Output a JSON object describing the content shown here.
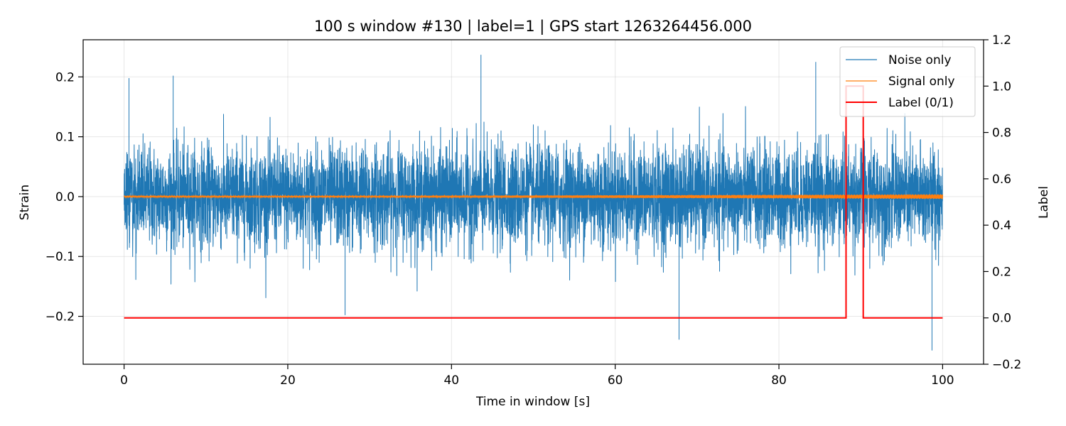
{
  "chart_data": {
    "type": "line",
    "title": "100 s window #130 | label=1 | GPS start 1263264456.000",
    "xlabel": "Time in window [s]",
    "ylabel": "Strain",
    "y2label": "Label",
    "xlim": [
      -5,
      105
    ],
    "ylim": [
      -0.28,
      0.262
    ],
    "y2lim": [
      -0.2,
      1.2
    ],
    "x_ticks": [
      0,
      20,
      40,
      60,
      80,
      100
    ],
    "x_tick_labels": [
      "0",
      "20",
      "40",
      "60",
      "80",
      "100"
    ],
    "y_ticks": [
      -0.2,
      -0.1,
      0.0,
      0.1,
      0.2
    ],
    "y_tick_labels": [
      "−0.2",
      "−0.1",
      "0.0",
      "0.1",
      "0.2"
    ],
    "y2_ticks": [
      -0.2,
      0.0,
      0.2,
      0.4,
      0.6,
      0.8,
      1.0,
      1.2
    ],
    "y2_tick_labels": [
      "−0.2",
      "0.0",
      "0.2",
      "0.4",
      "0.6",
      "0.8",
      "1.0",
      "1.2"
    ],
    "grid": true,
    "legend_position": "top-right",
    "series": [
      {
        "name": "Noise only",
        "color": "#1f77b4",
        "axis": "left",
        "x_range": [
          0,
          100
        ],
        "typical_amplitude": 0.1,
        "peaks": [
          {
            "x": 0.6,
            "y": 0.198
          },
          {
            "x": 6.0,
            "y": 0.202
          },
          {
            "x": 43.6,
            "y": 0.237
          },
          {
            "x": 84.5,
            "y": 0.225
          },
          {
            "x": 67.8,
            "y": -0.239
          },
          {
            "x": 98.7,
            "y": -0.257
          },
          {
            "x": 27.0,
            "y": -0.198
          }
        ]
      },
      {
        "name": "Signal only",
        "color": "#ff7f0e",
        "axis": "left",
        "x_range": [
          0,
          100
        ],
        "typical_amplitude": 0.004
      },
      {
        "name": "Label (0/1)",
        "color": "#ff0000",
        "axis": "right",
        "x": [
          0,
          88.2,
          88.2,
          90.3,
          90.3,
          100
        ],
        "y": [
          0,
          0,
          1,
          1,
          0,
          0
        ]
      }
    ]
  }
}
